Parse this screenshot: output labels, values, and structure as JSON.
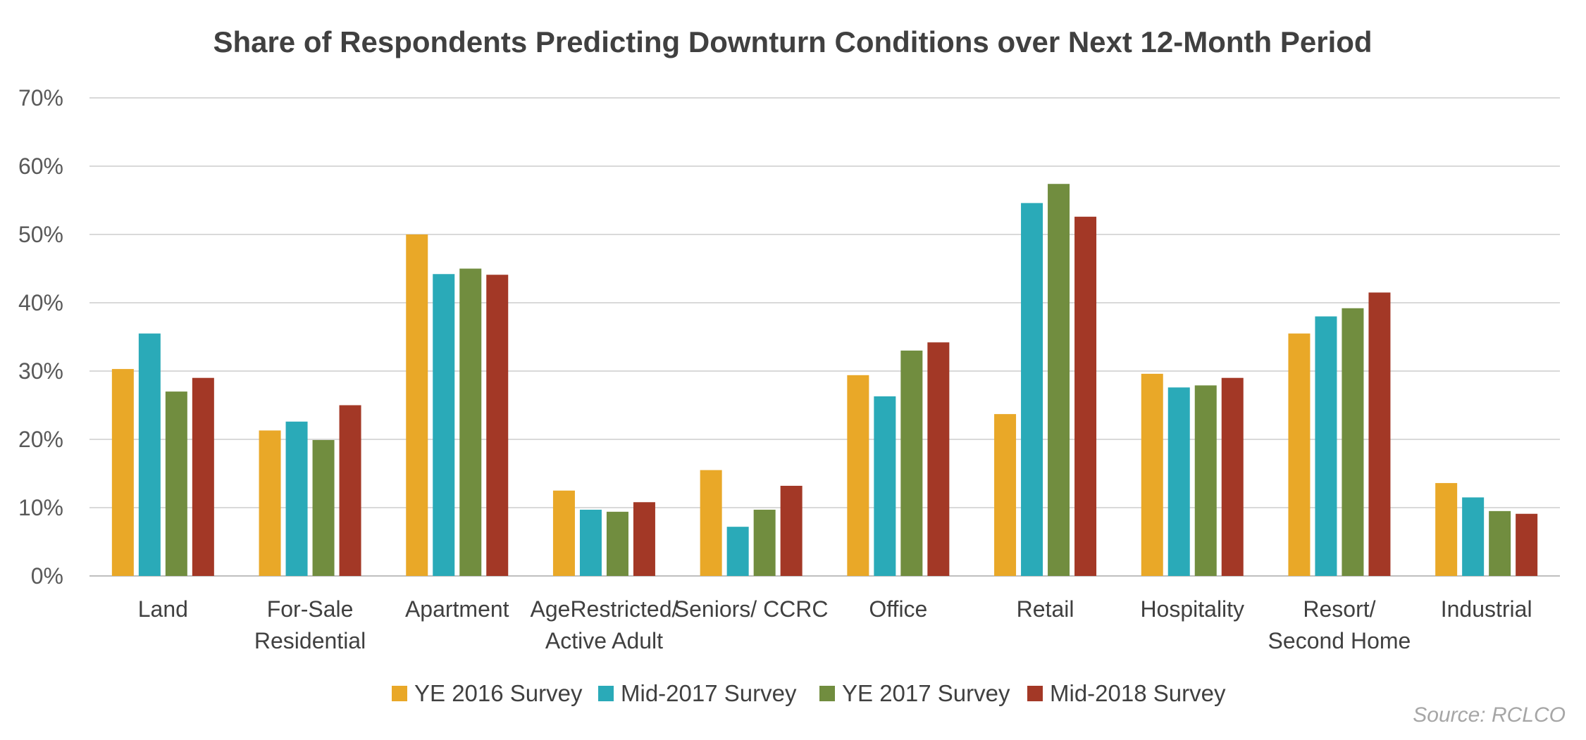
{
  "chart_data": {
    "type": "bar",
    "title": "Share of Respondents Predicting Downturn Conditions over Next 12-Month Period",
    "source": "Source: RCLCO",
    "ylim": [
      0,
      70
    ],
    "yticks": [
      "0%",
      "10%",
      "20%",
      "30%",
      "40%",
      "50%",
      "60%",
      "70%"
    ],
    "grid": true,
    "legend_position": "bottom",
    "categories": [
      [
        "Land"
      ],
      [
        "For-Sale",
        "Residential"
      ],
      [
        "Apartment"
      ],
      [
        "AgeRestricted/",
        "Active Adult"
      ],
      [
        "Seniors/ CCRC"
      ],
      [
        "Office"
      ],
      [
        "Retail"
      ],
      [
        "Hospitality"
      ],
      [
        "Resort/",
        "Second Home"
      ],
      [
        "Industrial"
      ]
    ],
    "series": [
      {
        "name": "YE 2016 Survey",
        "color": "#e9a828",
        "values": [
          30.3,
          21.3,
          50.0,
          12.5,
          15.5,
          29.4,
          23.7,
          29.6,
          35.5,
          13.6
        ]
      },
      {
        "name": "Mid-2017 Survey",
        "color": "#2aaab8",
        "values": [
          35.5,
          22.6,
          44.2,
          9.7,
          7.2,
          26.3,
          54.6,
          27.6,
          38.0,
          11.5
        ]
      },
      {
        "name": "YE 2017 Survey",
        "color": "#718d3f",
        "values": [
          27.0,
          19.9,
          45.0,
          9.4,
          9.7,
          33.0,
          57.4,
          27.9,
          39.2,
          9.5
        ]
      },
      {
        "name": "Mid-2018 Survey",
        "color": "#a33826",
        "values": [
          29.0,
          25.0,
          44.1,
          10.8,
          13.2,
          34.2,
          52.6,
          29.0,
          41.5,
          9.1
        ]
      }
    ]
  }
}
